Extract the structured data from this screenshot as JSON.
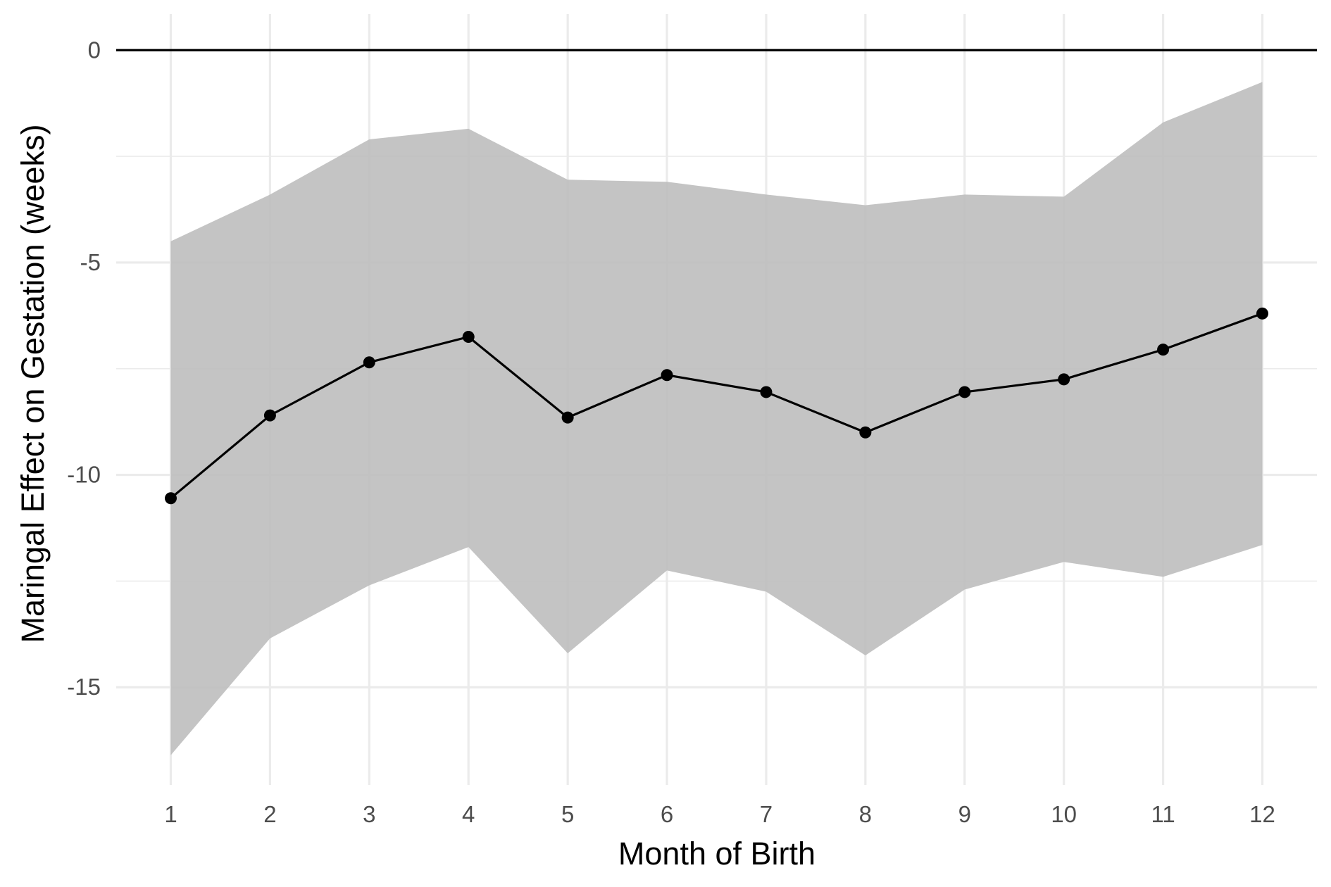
{
  "chart_data": {
    "type": "line",
    "title": "",
    "xlabel": "Month of Birth",
    "ylabel": "Maringal Effect on Gestation (weeks)",
    "x": [
      1,
      2,
      3,
      4,
      5,
      6,
      7,
      8,
      9,
      10,
      11,
      12
    ],
    "x_tick_labels": [
      "1",
      "2",
      "3",
      "4",
      "5",
      "6",
      "7",
      "8",
      "9",
      "10",
      "11",
      "12"
    ],
    "y_ticks": [
      0,
      -5,
      -10,
      -15
    ],
    "y_tick_labels": [
      "0",
      "-5",
      "-10",
      "-15"
    ],
    "xlim": [
      0.45,
      12.55
    ],
    "ylim": [
      -17.3,
      0.85
    ],
    "reference_line": 0,
    "grid": true,
    "series": [
      {
        "values": [
          -10.55,
          -8.6,
          -7.35,
          -6.75,
          -8.65,
          -7.65,
          -8.05,
          -9.0,
          -8.05,
          -7.75,
          -7.05,
          -6.2
        ],
        "lower": [
          -16.6,
          -13.85,
          -12.6,
          -11.7,
          -14.2,
          -12.25,
          -12.75,
          -14.25,
          -12.7,
          -12.05,
          -12.4,
          -11.65
        ],
        "upper": [
          -4.5,
          -3.4,
          -2.1,
          -1.85,
          -3.05,
          -3.1,
          -3.4,
          -3.65,
          -3.4,
          -3.45,
          -1.7,
          -0.75
        ]
      }
    ],
    "colors": {
      "line": "#000000",
      "ribbon": "#bebebe",
      "grid": "#ebebeb",
      "reference": "#000000"
    }
  }
}
